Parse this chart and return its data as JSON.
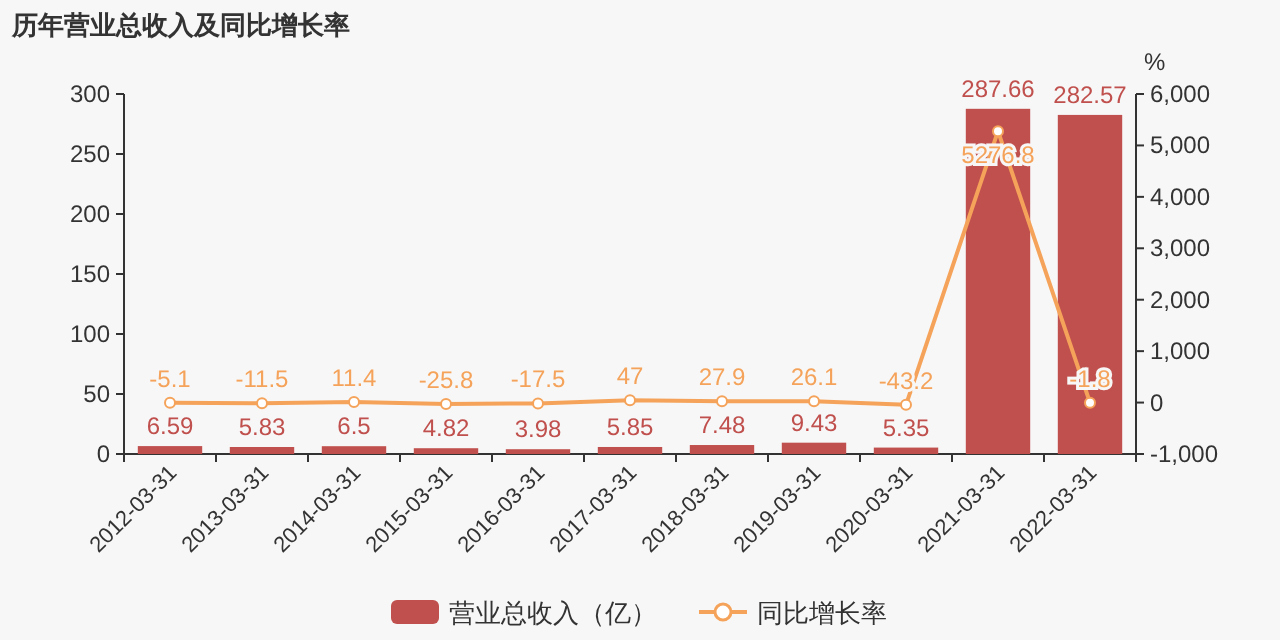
{
  "chart_data": {
    "type": "bar",
    "title": "历年营业总收入及同比增长率",
    "y2label": "%",
    "categories": [
      "2012-03-31",
      "2013-03-31",
      "2014-03-31",
      "2015-03-31",
      "2016-03-31",
      "2017-03-31",
      "2018-03-31",
      "2019-03-31",
      "2020-03-31",
      "2021-03-31",
      "2022-03-31"
    ],
    "series": [
      {
        "name": "营业总收入（亿）",
        "color": "#c0504d",
        "values": [
          6.59,
          5.83,
          6.5,
          4.82,
          3.98,
          5.85,
          7.48,
          9.43,
          5.35,
          287.66,
          282.57
        ]
      },
      {
        "name": "同比增长率",
        "type": "line",
        "axis": "y2",
        "color": "#f5a35a",
        "marker": "circle",
        "values": [
          -5.1,
          -11.5,
          11.4,
          -25.8,
          -17.5,
          47,
          27.9,
          26.1,
          -43.2,
          5276.8,
          -1.8
        ]
      }
    ],
    "ylim": [
      0,
      300
    ],
    "yticks": [
      0,
      50,
      100,
      150,
      200,
      250,
      300
    ],
    "y2lim": [
      -1000,
      6000
    ],
    "y2ticks": [
      {
        "value": -1000,
        "label": "-1,000"
      },
      0,
      {
        "value": 1000,
        "label": "1,000"
      },
      {
        "value": 2000,
        "label": "2,000"
      },
      {
        "value": 3000,
        "label": "3,000"
      },
      {
        "value": 4000,
        "label": "4,000"
      },
      {
        "value": 5000,
        "label": "5,000"
      },
      {
        "value": 6000,
        "label": "6,000"
      }
    ],
    "data_labels": true,
    "legend": "bottom",
    "grid": false
  }
}
